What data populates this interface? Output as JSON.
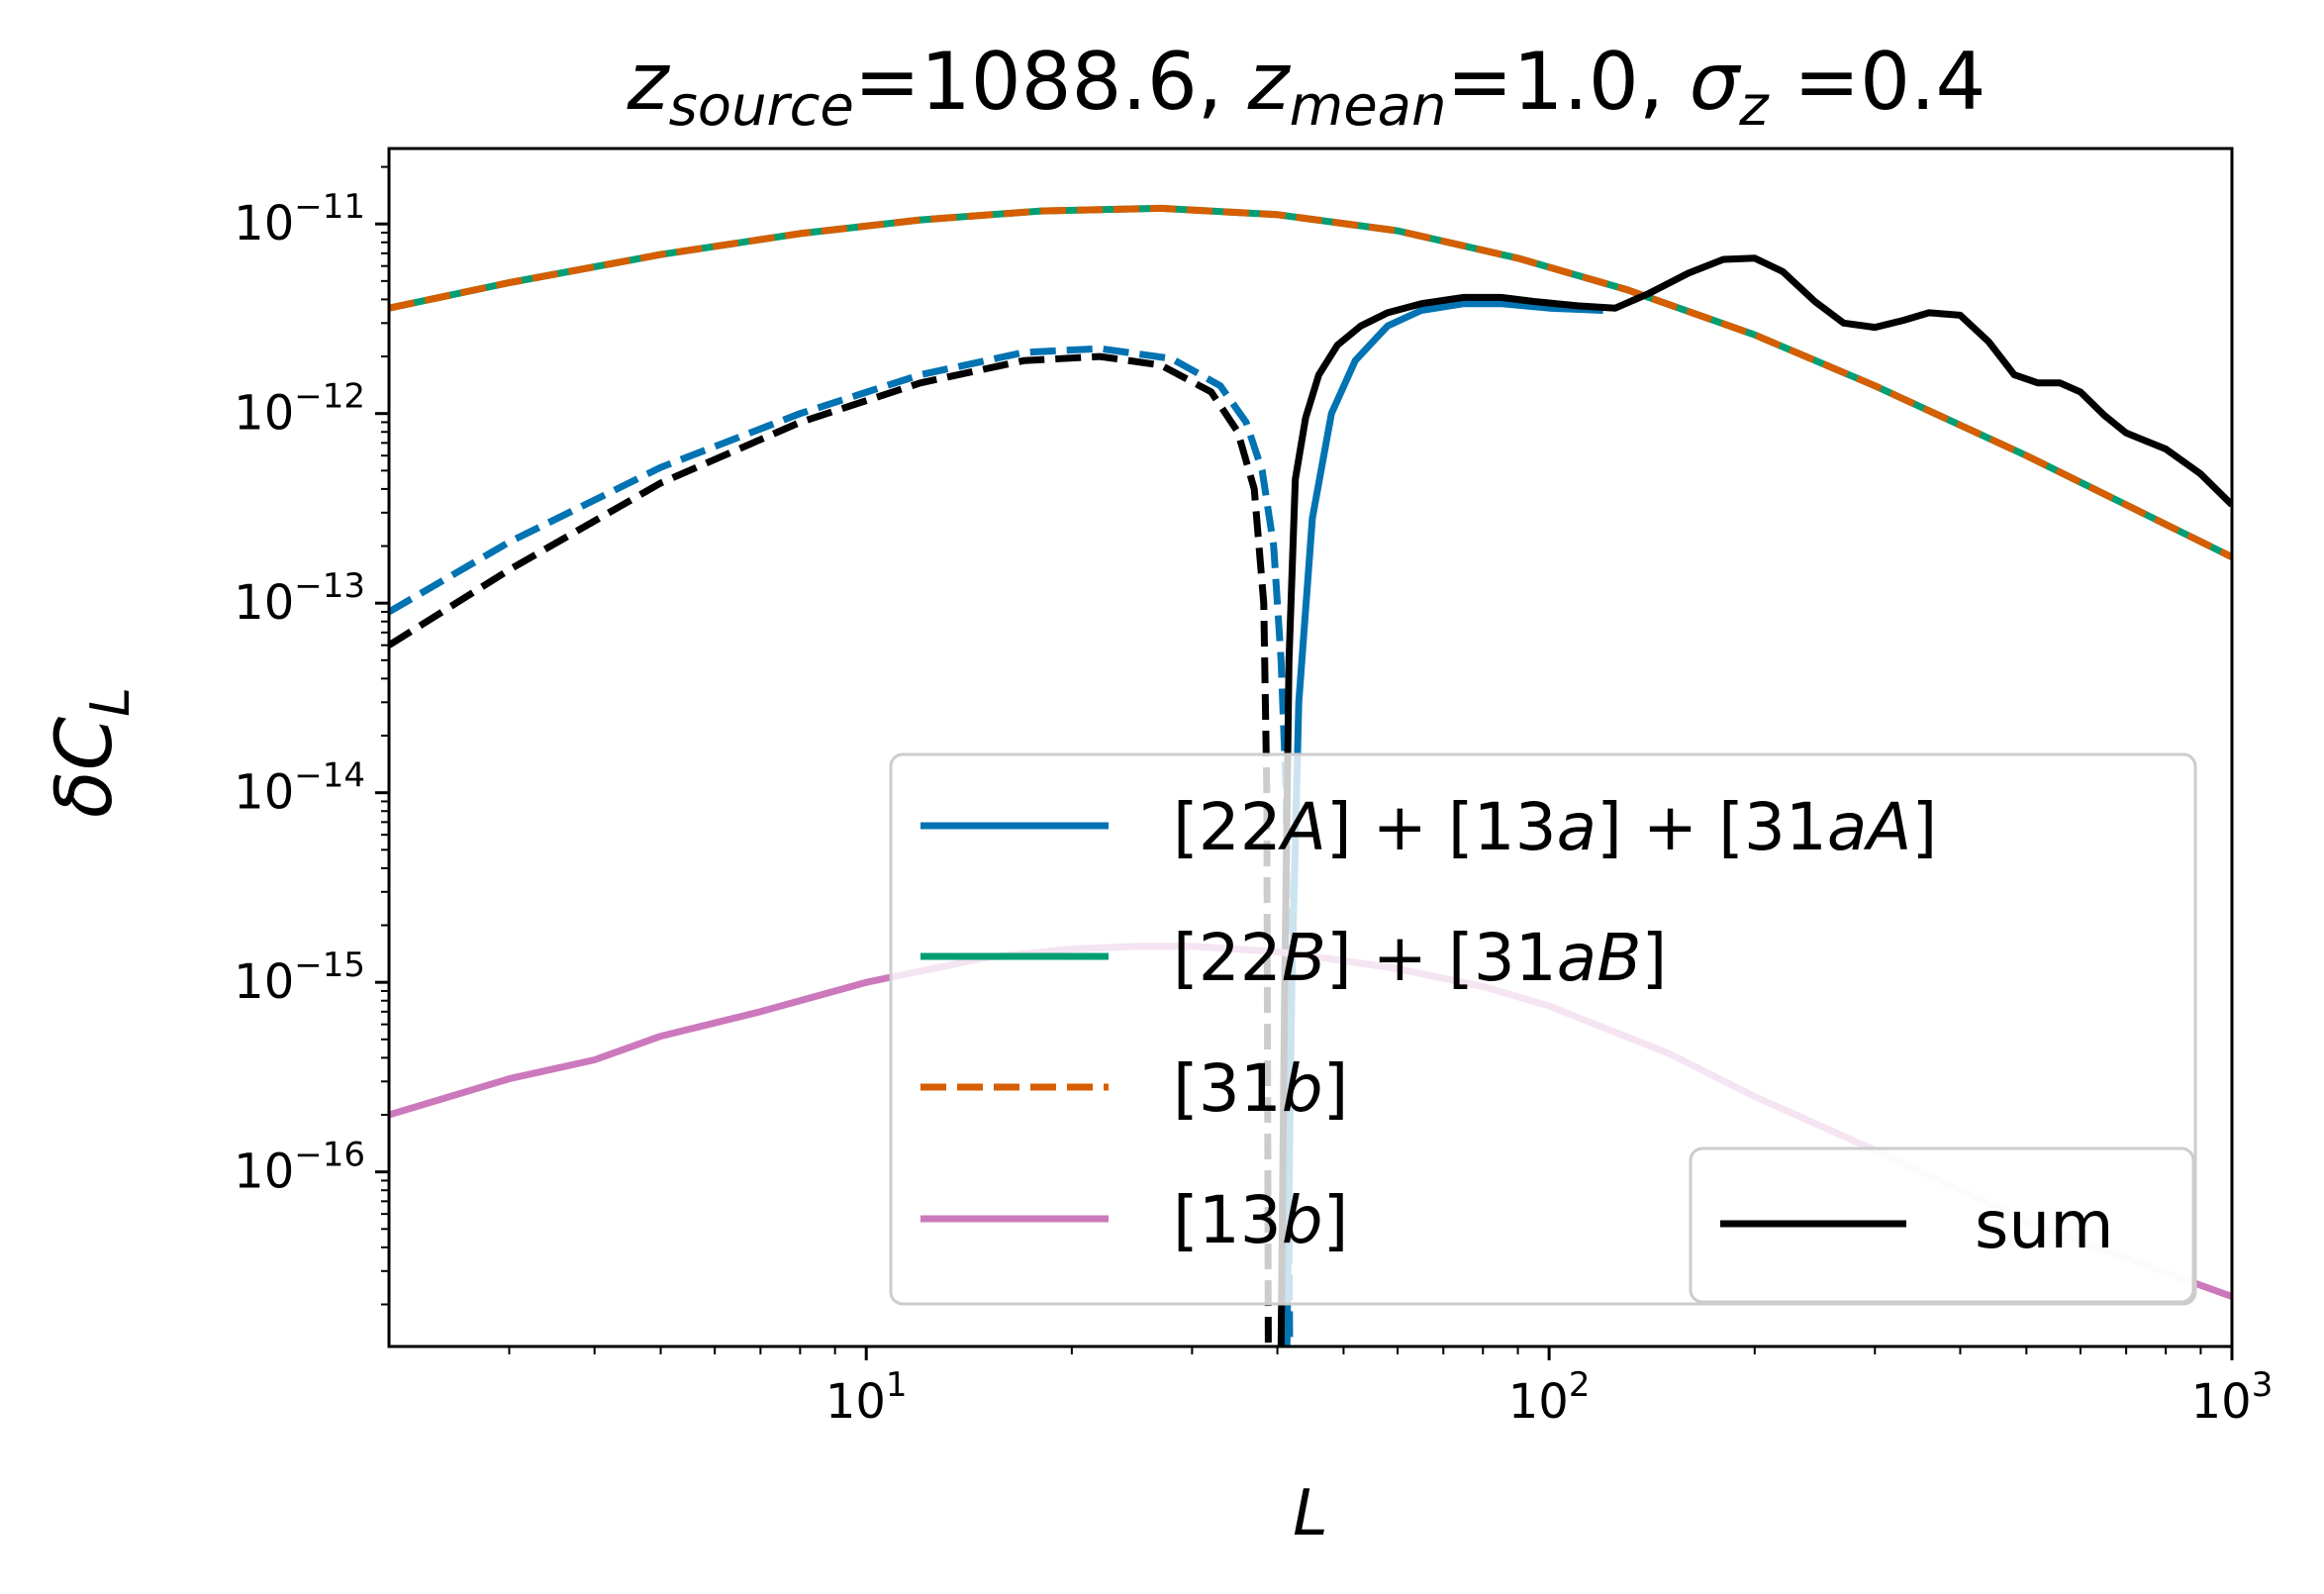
{
  "chart_data": {
    "type": "line",
    "title": {
      "parts": [
        {
          "t": "z",
          "style": "italic"
        },
        {
          "t": "source",
          "style": "italic-sub"
        },
        {
          "t": "=1088.6, ",
          "style": "normal"
        },
        {
          "t": "z",
          "style": "italic"
        },
        {
          "t": "mean",
          "style": "italic-sub"
        },
        {
          "t": "=1.0, ",
          "style": "normal"
        },
        {
          "t": "σ",
          "style": "italic"
        },
        {
          "t": "z",
          "style": "italic-sub"
        },
        {
          "t": " =0.4",
          "style": "normal"
        }
      ]
    },
    "xlabel": "L",
    "ylabel": {
      "main": "δC",
      "sub": "L"
    },
    "xscale": "log",
    "yscale": "log",
    "xlim": [
      2,
      1000
    ],
    "ylim": [
      1.2e-17,
      2.5e-11
    ],
    "x_ticks": [
      {
        "value": 10,
        "base": "10",
        "exp": "1"
      },
      {
        "value": 100,
        "base": "10",
        "exp": "2"
      },
      {
        "value": 1000,
        "base": "10",
        "exp": "3"
      }
    ],
    "y_ticks": [
      {
        "value": 1e-11,
        "base": "10",
        "exp": "−11"
      },
      {
        "value": 1e-12,
        "base": "10",
        "exp": "−12"
      },
      {
        "value": 1e-13,
        "base": "10",
        "exp": "−13"
      },
      {
        "value": 1e-14,
        "base": "10",
        "exp": "−14"
      },
      {
        "value": 1e-15,
        "base": "10",
        "exp": "−15"
      },
      {
        "value": 1e-16,
        "base": "10",
        "exp": "−16"
      }
    ],
    "series": [
      {
        "name": "[22B]+[31aB]",
        "color": "#029e73",
        "dash": "solid",
        "x": [
          2,
          3,
          5,
          8,
          12,
          18,
          27,
          40,
          60,
          90,
          130,
          200,
          300,
          500,
          700,
          1000
        ],
        "y": [
          3.6e-12,
          4.9e-12,
          6.9e-12,
          8.9e-12,
          1.05e-11,
          1.17e-11,
          1.21e-11,
          1.12e-11,
          9.2e-12,
          6.6e-12,
          4.5e-12,
          2.6e-12,
          1.4e-12,
          6e-13,
          3.3e-13,
          1.75e-13
        ]
      },
      {
        "name": "[31b]",
        "color": "#d55e00",
        "dash": "dashed",
        "x": [
          2,
          3,
          5,
          8,
          12,
          18,
          27,
          40,
          60,
          90,
          130,
          200,
          300,
          500,
          700,
          1000
        ],
        "y": [
          3.6e-12,
          4.9e-12,
          6.9e-12,
          8.9e-12,
          1.05e-11,
          1.17e-11,
          1.21e-11,
          1.12e-11,
          9.2e-12,
          6.6e-12,
          4.5e-12,
          2.6e-12,
          1.4e-12,
          6e-13,
          3.3e-13,
          1.75e-13
        ]
      },
      {
        "name": "[22A]+[13a]+[31aA]",
        "color": "#0173b2",
        "dash": "dashed",
        "x": [
          2,
          3,
          5,
          8,
          12,
          17,
          22,
          28,
          33,
          36,
          38,
          39.5,
          40.5,
          41.2,
          41.7
        ],
        "y": [
          9e-14,
          2.1e-13,
          5.2e-13,
          1e-12,
          1.6e-12,
          2.1e-12,
          2.2e-12,
          1.95e-12,
          1.4e-12,
          9e-13,
          5e-13,
          2e-13,
          5e-14,
          1e-14,
          1.2e-17
        ]
      },
      {
        "name": "[22A]+[13a]+[31aA] (positive)",
        "color": "#0173b2",
        "dash": "solid",
        "legend": false,
        "x": [
          41.3,
          42,
          43,
          45,
          48,
          52,
          58,
          65,
          75,
          85,
          100,
          120
        ],
        "y": [
          1.2e-17,
          1e-15,
          3e-14,
          2.8e-13,
          1e-12,
          1.9e-12,
          2.9e-12,
          3.5e-12,
          3.8e-12,
          3.8e-12,
          3.6e-12,
          3.5e-12
        ]
      },
      {
        "name": "sum (negative)",
        "color": "#000000",
        "dash": "dashed",
        "legend": false,
        "x": [
          2,
          3,
          5,
          8,
          12,
          17,
          22,
          27,
          32,
          35,
          37,
          38.2,
          38.6,
          38.8
        ],
        "y": [
          6e-14,
          1.5e-13,
          4.3e-13,
          9e-13,
          1.45e-12,
          1.9e-12,
          2e-12,
          1.8e-12,
          1.3e-12,
          8e-13,
          4e-13,
          1e-13,
          1e-14,
          1.2e-17
        ]
      },
      {
        "name": "sum",
        "color": "#000000",
        "dash": "solid",
        "x": [
          40.5,
          41,
          41.6,
          42.5,
          44,
          46,
          49,
          53,
          58,
          65,
          75,
          85,
          95,
          110,
          125,
          140,
          160,
          180,
          200,
          220,
          245,
          270,
          300,
          330,
          360,
          400,
          440,
          480,
          520,
          560,
          600,
          650,
          700,
          800,
          900,
          1000
        ],
        "y": [
          1.2e-17,
          1e-15,
          5e-14,
          4.5e-13,
          9.5e-13,
          1.6e-12,
          2.3e-12,
          2.9e-12,
          3.4e-12,
          3.8e-12,
          4.1e-12,
          4.1e-12,
          3.9e-12,
          3.7e-12,
          3.6e-12,
          4.3e-12,
          5.5e-12,
          6.5e-12,
          6.6e-12,
          5.6e-12,
          3.9e-12,
          3e-12,
          2.85e-12,
          3.1e-12,
          3.4e-12,
          3.3e-12,
          2.4e-12,
          1.6e-12,
          1.45e-12,
          1.45e-12,
          1.3e-12,
          9.8e-13,
          7.9e-13,
          6.5e-13,
          4.8e-13,
          3.3e-13
        ]
      },
      {
        "name": "[13b]",
        "color": "#cc78bc",
        "dash": "solid",
        "x": [
          2,
          3,
          4,
          5,
          7,
          10,
          15,
          20,
          25,
          30,
          40,
          50,
          60,
          80,
          100,
          150,
          200,
          300,
          400,
          500,
          700,
          1000
        ],
        "y": [
          2e-16,
          3.1e-16,
          3.9e-16,
          5.2e-16,
          7e-16,
          1e-15,
          1.35e-15,
          1.5e-15,
          1.55e-15,
          1.55e-15,
          1.45e-15,
          1.3e-15,
          1.18e-15,
          9.5e-16,
          7.5e-16,
          4.2e-16,
          2.5e-16,
          1.3e-16,
          8e-17,
          5.5e-17,
          3.5e-17,
          2.2e-17
        ]
      }
    ],
    "legends": [
      {
        "position": "lower-right",
        "entries": [
          {
            "label_parts": [
              {
                "t": "[22",
                "s": "n"
              },
              {
                "t": "A",
                "s": "i"
              },
              {
                "t": "] + [13",
                "s": "n"
              },
              {
                "t": "a",
                "s": "i"
              },
              {
                "t": "] + [31",
                "s": "n"
              },
              {
                "t": "aA",
                "s": "i"
              },
              {
                "t": "]",
                "s": "n"
              }
            ],
            "color": "#0173b2",
            "dash": "solid"
          },
          {
            "label_parts": [
              {
                "t": "[22",
                "s": "n"
              },
              {
                "t": "B",
                "s": "i"
              },
              {
                "t": "] + [31",
                "s": "n"
              },
              {
                "t": "aB",
                "s": "i"
              },
              {
                "t": "]",
                "s": "n"
              }
            ],
            "color": "#029e73",
            "dash": "solid"
          },
          {
            "label_parts": [
              {
                "t": "[31",
                "s": "n"
              },
              {
                "t": "b",
                "s": "i"
              },
              {
                "t": "]",
                "s": "n"
              }
            ],
            "color": "#d55e00",
            "dash": "dashed"
          },
          {
            "label_parts": [
              {
                "t": "[13",
                "s": "n"
              },
              {
                "t": "b",
                "s": "i"
              },
              {
                "t": "]",
                "s": "n"
              }
            ],
            "color": "#cc78bc",
            "dash": "solid"
          }
        ]
      },
      {
        "position": "lower-right-inner",
        "entries": [
          {
            "label_parts": [
              {
                "t": "sum",
                "s": "n"
              }
            ],
            "color": "#000000",
            "dash": "solid"
          }
        ]
      }
    ]
  }
}
